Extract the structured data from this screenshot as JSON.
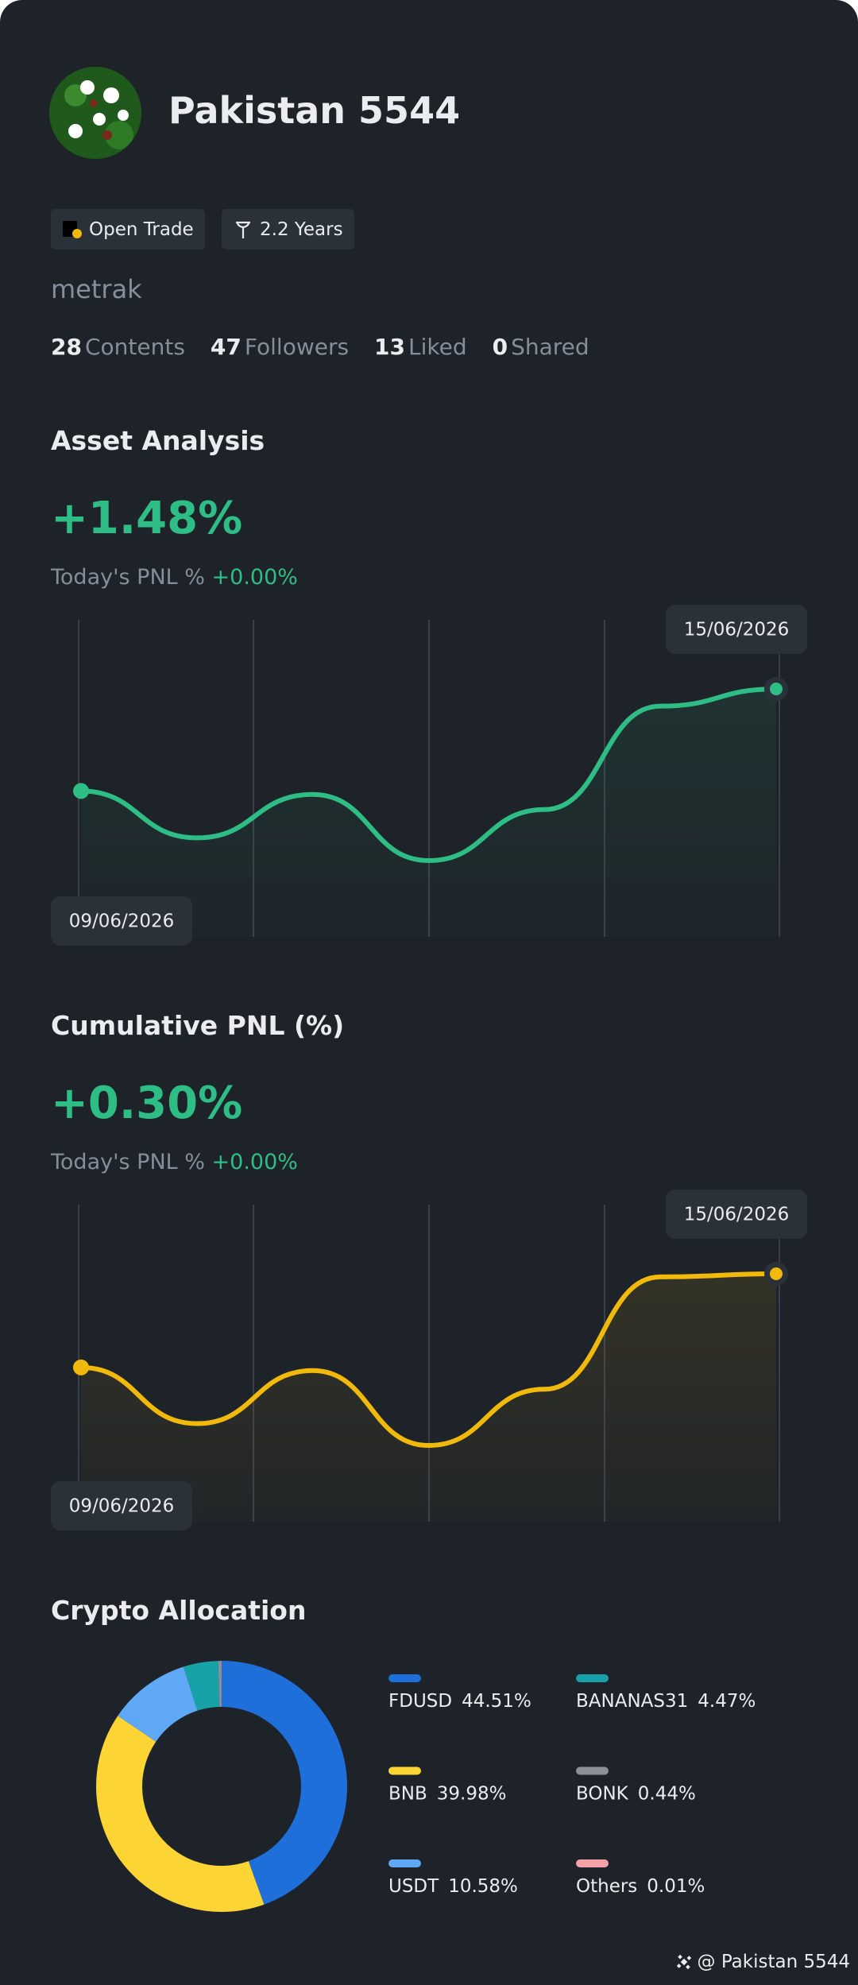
{
  "profile": {
    "name": "Pakistan 5544",
    "badges": [
      "Open Trade",
      "2.2 Years"
    ],
    "username": "metrak",
    "stats": [
      {
        "count": 28,
        "label": "Contents"
      },
      {
        "count": 47,
        "label": "Followers"
      },
      {
        "count": 13,
        "label": "Liked"
      },
      {
        "count": 0,
        "label": "Shared"
      }
    ]
  },
  "chart_data": [
    {
      "type": "line",
      "title": "Asset Analysis",
      "headline": "+1.48%",
      "pnl_label": "Today's PNL %",
      "pnl_value": "+0.00%",
      "x": [
        "09/06/2026",
        null,
        null,
        null,
        null,
        null,
        "15/06/2026"
      ],
      "series": [
        {
          "color": "#2ebd85",
          "values": [
            0,
            -0.68,
            -0.05,
            -1.01,
            -0.27,
            1.23,
            1.48
          ]
        }
      ]
    },
    {
      "type": "line",
      "title": "Cumulative PNL (%)",
      "headline": "+0.30%",
      "pnl_label": "Today's PNL %",
      "pnl_value": "+0.00%",
      "x": [
        "09/06/2026",
        null,
        null,
        null,
        null,
        null,
        "15/06/2026"
      ],
      "series": [
        {
          "color": "#f0b90b",
          "values": [
            0,
            -0.18,
            -0.01,
            -0.25,
            -0.07,
            0.29,
            0.3
          ]
        }
      ]
    },
    {
      "type": "pie",
      "title": "Crypto Allocation",
      "categories": [
        "FDUSD",
        "BNB",
        "USDT",
        "BANANAS31",
        "BONK",
        "Others"
      ],
      "values": [
        44.51,
        39.98,
        10.58,
        4.47,
        0.44,
        0.01
      ],
      "value_labels": [
        "44.51%",
        "39.98%",
        "10.58%",
        "4.47%",
        "0.44%",
        "0.01%"
      ],
      "colors": [
        "#1e6fd9",
        "#fcd535",
        "#5ea8f5",
        "#17a2a8",
        "#8a8f98",
        "#f4a1a8"
      ]
    }
  ],
  "footer": "@ Pakistan 5544"
}
